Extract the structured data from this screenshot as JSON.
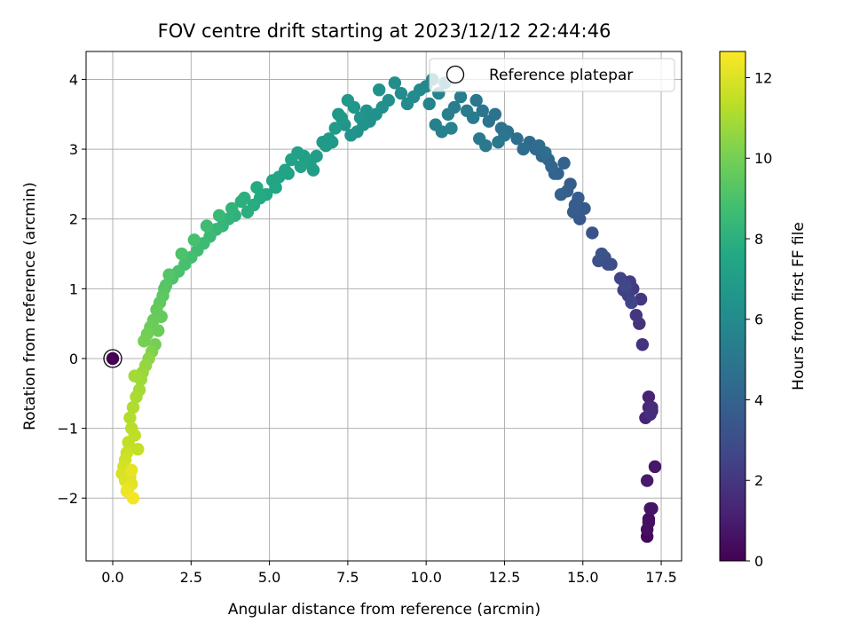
{
  "chart_data": {
    "type": "scatter",
    "title": "FOV centre drift starting at 2023/12/12 22:44:46",
    "xlabel": "Angular distance from reference (arcmin)",
    "ylabel": "Rotation from reference (arcmin)",
    "xlim": [
      -0.85,
      18.15
    ],
    "ylim": [
      -2.9,
      4.4
    ],
    "xticks": [
      0,
      2.5,
      5,
      7.5,
      10,
      12.5,
      15,
      17.5
    ],
    "xtick_labels": [
      "0.0",
      "2.5",
      "5.0",
      "7.5",
      "10.0",
      "12.5",
      "15.0",
      "17.5"
    ],
    "yticks": [
      -2,
      -1,
      0,
      1,
      2,
      3,
      4
    ],
    "ytick_labels": [
      "−2",
      "−1",
      "0",
      "1",
      "2",
      "3",
      "4"
    ],
    "grid": true,
    "legend": {
      "position": "top-right",
      "entries": [
        "Reference platepar"
      ]
    },
    "colorbar": {
      "label": "Hours from first FF file",
      "range": [
        0,
        12.65
      ],
      "ticks": [
        0,
        2,
        4,
        6,
        8,
        10,
        12
      ],
      "tick_labels": [
        "0",
        "2",
        "4",
        "6",
        "8",
        "10",
        "12"
      ],
      "colormap": "viridis"
    },
    "reference_point": {
      "x": 0.0,
      "y": 0.0,
      "hours": 0.0
    },
    "x": [
      17.05,
      17.1,
      17.2,
      17.3,
      17.15,
      17.2,
      17.1,
      17.05,
      17.0,
      17.1,
      17.2,
      17.05,
      17.1,
      17.15,
      16.8,
      16.9,
      16.7,
      16.85,
      16.6,
      16.5,
      16.4,
      16.3,
      16.2,
      16.45,
      16.55,
      16.35,
      15.9,
      15.7,
      15.5,
      15.8,
      15.6,
      15.3,
      14.9,
      15.05,
      14.7,
      14.85,
      14.6,
      14.75,
      14.5,
      14.3,
      14.2,
      14.4,
      14.1,
      14.0,
      13.9,
      13.7,
      13.5,
      13.3,
      13.1,
      13.6,
      13.8,
      12.9,
      12.6,
      12.4,
      12.2,
      12.0,
      11.8,
      11.6,
      12.5,
      12.3,
      11.9,
      11.7,
      11.5,
      11.3,
      11.1,
      10.9,
      10.7,
      10.5,
      10.3,
      10.1,
      10.8,
      10.4,
      10.6,
      10.2,
      10.0,
      9.8,
      9.6,
      9.4,
      9.2,
      9.0,
      8.8,
      8.6,
      8.4,
      8.2,
      8.0,
      7.8,
      7.6,
      7.4,
      7.2,
      7.0,
      8.5,
      8.1,
      7.9,
      7.7,
      7.5,
      7.3,
      7.1,
      6.9,
      6.7,
      6.5,
      6.3,
      6.1,
      5.9,
      5.7,
      5.5,
      5.3,
      5.1,
      6.8,
      6.4,
      6.0,
      5.6,
      5.2,
      4.9,
      4.7,
      4.5,
      4.3,
      4.1,
      3.9,
      3.7,
      3.5,
      3.3,
      3.1,
      2.9,
      2.7,
      2.5,
      2.3,
      2.1,
      1.9,
      4.6,
      4.2,
      3.8,
      3.4,
      3.0,
      2.6,
      2.2,
      1.8,
      1.7,
      1.6,
      1.5,
      1.4,
      1.3,
      1.2,
      1.1,
      1.0,
      1.65,
      1.55,
      1.45,
      1.35,
      1.25,
      1.15,
      1.05,
      0.95,
      0.9,
      0.85,
      0.75,
      0.65,
      0.55,
      0.6,
      0.7,
      0.8,
      0.5,
      0.45,
      0.4,
      0.35,
      0.3,
      0.55,
      0.6,
      0.5,
      0.45,
      0.4,
      0.65,
      0.7,
      0.6
    ],
    "y": [
      -2.55,
      -2.3,
      -2.15,
      -1.55,
      -2.15,
      -0.75,
      -0.55,
      -1.75,
      -0.85,
      -0.7,
      -0.7,
      -2.45,
      -2.35,
      -0.8,
      0.5,
      0.2,
      0.62,
      0.85,
      1.0,
      1.1,
      0.95,
      0.98,
      1.15,
      0.9,
      0.8,
      1.05,
      1.35,
      1.45,
      1.4,
      1.35,
      1.5,
      1.8,
      2.0,
      2.15,
      2.1,
      2.3,
      2.5,
      2.2,
      2.4,
      2.35,
      2.65,
      2.8,
      2.65,
      2.75,
      2.85,
      2.9,
      3.0,
      3.1,
      3.0,
      3.05,
      2.95,
      3.15,
      3.25,
      3.3,
      3.5,
      3.4,
      3.55,
      3.7,
      3.2,
      3.1,
      3.05,
      3.15,
      3.45,
      3.55,
      3.75,
      3.6,
      3.5,
      3.25,
      3.35,
      3.65,
      3.3,
      3.8,
      3.95,
      4.0,
      3.9,
      3.85,
      3.75,
      3.65,
      3.8,
      3.95,
      3.7,
      3.6,
      3.5,
      3.4,
      3.35,
      3.25,
      3.2,
      3.35,
      3.5,
      3.1,
      3.85,
      3.55,
      3.45,
      3.6,
      3.7,
      3.45,
      3.3,
      3.15,
      3.1,
      2.9,
      2.8,
      2.9,
      2.95,
      2.85,
      2.7,
      2.6,
      2.55,
      3.05,
      2.7,
      2.75,
      2.65,
      2.45,
      2.35,
      2.3,
      2.2,
      2.1,
      2.25,
      2.05,
      2.0,
      1.9,
      1.85,
      1.75,
      1.65,
      1.55,
      1.45,
      1.35,
      1.25,
      1.15,
      2.45,
      2.3,
      2.15,
      2.05,
      1.9,
      1.7,
      1.5,
      1.2,
      1.05,
      0.9,
      0.8,
      0.7,
      0.55,
      0.45,
      0.35,
      0.25,
      1.0,
      0.6,
      0.4,
      0.2,
      0.1,
      0.0,
      -0.1,
      -0.2,
      -0.3,
      -0.45,
      -0.55,
      -0.7,
      -0.85,
      -1.0,
      -1.1,
      -1.3,
      -1.2,
      -1.35,
      -1.45,
      -1.55,
      -1.65,
      -1.7,
      -1.8,
      -1.85,
      -1.9,
      -1.75,
      -2.0,
      -0.25,
      -1.6
    ],
    "hours": [
      0.3,
      0.4,
      0.6,
      0.8,
      0.7,
      1.0,
      1.2,
      0.9,
      1.3,
      1.4,
      1.5,
      0.5,
      0.55,
      1.6,
      1.8,
      1.9,
      2.0,
      2.1,
      2.2,
      2.3,
      2.35,
      2.4,
      2.5,
      2.45,
      2.6,
      2.7,
      2.9,
      3.0,
      3.1,
      3.05,
      3.2,
      3.3,
      3.5,
      3.55,
      3.6,
      3.7,
      3.65,
      3.75,
      3.8,
      3.9,
      3.95,
      4.0,
      4.1,
      4.15,
      4.2,
      4.3,
      4.35,
      4.4,
      4.5,
      4.45,
      4.55,
      4.6,
      4.7,
      4.75,
      4.8,
      4.85,
      4.9,
      5.0,
      4.95,
      5.05,
      5.1,
      5.15,
      5.2,
      5.25,
      5.3,
      5.35,
      5.4,
      5.5,
      5.45,
      5.6,
      5.55,
      5.65,
      5.7,
      5.75,
      5.8,
      5.9,
      5.95,
      6.0,
      6.05,
      6.1,
      6.2,
      6.25,
      6.3,
      6.35,
      6.4,
      6.45,
      6.5,
      6.55,
      6.6,
      6.7,
      6.3,
      6.4,
      6.5,
      6.6,
      6.7,
      6.75,
      6.8,
      6.85,
      6.9,
      7.0,
      7.05,
      7.1,
      7.2,
      7.25,
      7.3,
      7.35,
      7.4,
      6.9,
      7.0,
      7.2,
      7.3,
      7.5,
      7.6,
      7.7,
      7.8,
      7.9,
      8.0,
      8.1,
      8.2,
      8.3,
      8.4,
      8.5,
      8.6,
      8.7,
      8.8,
      8.9,
      9.0,
      9.1,
      7.7,
      8.0,
      8.2,
      8.45,
      8.7,
      8.9,
      9.05,
      9.2,
      9.3,
      9.4,
      9.5,
      9.6,
      9.7,
      9.8,
      9.9,
      10.0,
      9.3,
      9.6,
      9.8,
      10.0,
      10.2,
      10.4,
      10.6,
      10.7,
      10.8,
      10.9,
      11.0,
      11.1,
      11.2,
      11.3,
      11.4,
      11.5,
      11.45,
      11.6,
      11.7,
      11.8,
      11.9,
      12.0,
      12.1,
      12.2,
      12.3,
      12.0,
      12.5,
      10.9,
      12.2
    ]
  }
}
